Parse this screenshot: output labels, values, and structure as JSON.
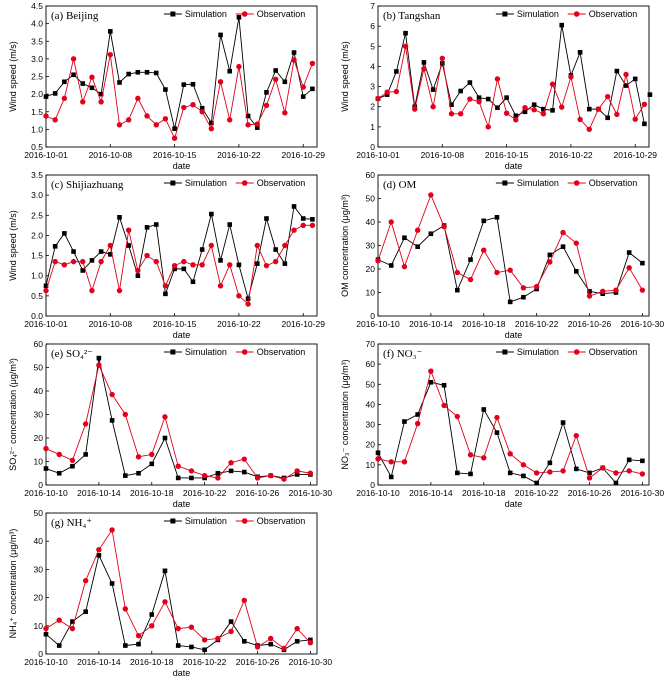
{
  "figure": {
    "series_names": [
      "Simulation",
      "Observation"
    ],
    "colors": {
      "simulation": "#000000",
      "observation": "#e3001b"
    }
  },
  "chart_data": [
    {
      "type": "line",
      "panel_label": "(a) Beijing",
      "xlabel": "date",
      "ylabel": "Wind speed (m/s)",
      "xlim": [
        0,
        29.5
      ],
      "ylim": [
        0.5,
        4.5
      ],
      "x_ticks": [
        0,
        7,
        14,
        21,
        28
      ],
      "x_tick_labels": [
        "2016-10-01",
        "2016-10-08",
        "2016-10-15",
        "2016-10-22",
        "2016-10-29"
      ],
      "y_ticks": [
        0.5,
        1.0,
        1.5,
        2.0,
        2.5,
        3.0,
        3.5,
        4.0,
        4.5
      ],
      "y_tick_labels": [
        "0.5",
        "1.0",
        "1.5",
        "2.0",
        "2.5",
        "3.0",
        "3.5",
        "4.0",
        "4.5"
      ],
      "series": [
        {
          "name": "Simulation",
          "x": [
            0,
            1,
            2,
            3,
            4,
            5,
            6,
            7,
            8,
            9,
            10,
            11,
            12,
            13,
            14,
            15,
            16,
            17,
            18,
            19,
            20,
            21,
            22,
            23,
            24,
            25,
            26,
            27,
            28,
            29
          ],
          "values": [
            1.93,
            2.02,
            2.35,
            2.55,
            2.3,
            2.18,
            2.0,
            3.78,
            2.33,
            2.57,
            2.62,
            2.62,
            2.6,
            2.13,
            1.02,
            2.27,
            2.28,
            1.6,
            1.18,
            3.68,
            2.65,
            4.18,
            1.38,
            1.05,
            2.05,
            2.67,
            2.35,
            3.18,
            1.93,
            2.15
          ]
        },
        {
          "name": "Observation",
          "x": [
            0,
            1,
            2,
            3,
            4,
            5,
            6,
            7,
            8,
            9,
            10,
            11,
            12,
            13,
            14,
            15,
            16,
            17,
            18,
            19,
            20,
            21,
            22,
            23,
            24,
            25,
            26,
            27,
            28,
            29
          ],
          "values": [
            1.38,
            1.27,
            1.88,
            3.0,
            1.78,
            2.48,
            1.78,
            3.12,
            1.13,
            1.27,
            1.88,
            1.38,
            1.13,
            1.3,
            0.75,
            1.62,
            1.7,
            1.5,
            1.02,
            2.35,
            1.27,
            2.78,
            1.13,
            1.15,
            1.68,
            2.42,
            1.47,
            2.97,
            2.2,
            2.87
          ]
        }
      ]
    },
    {
      "type": "line",
      "panel_label": "(b) Tangshan",
      "xlabel": "date",
      "ylabel": "Wind speed (m/s)",
      "xlim": [
        0,
        29.5
      ],
      "ylim": [
        0,
        7
      ],
      "x_ticks": [
        0,
        7,
        14,
        21,
        28
      ],
      "x_tick_labels": [
        "2016-10-01",
        "2016-10-08",
        "2016-10-15",
        "2016-10-22",
        "2016-10-29"
      ],
      "y_ticks": [
        0,
        1,
        2,
        3,
        4,
        5,
        6,
        7
      ],
      "y_tick_labels": [
        "0",
        "1",
        "2",
        "3",
        "4",
        "5",
        "6",
        "7"
      ],
      "series": [
        {
          "name": "Simulation",
          "x": [
            0,
            1,
            2,
            3,
            4,
            5,
            6,
            7,
            8,
            9,
            10,
            11,
            12,
            13,
            14,
            15,
            16,
            17,
            18,
            19,
            20,
            21,
            22,
            23,
            24,
            25,
            26,
            27,
            28,
            29
          ],
          "values": [
            2.4,
            2.6,
            3.75,
            5.65,
            2.0,
            4.2,
            2.85,
            4.15,
            2.1,
            2.78,
            3.2,
            2.45,
            2.38,
            1.95,
            2.45,
            1.55,
            1.75,
            2.1,
            1.88,
            1.82,
            6.05,
            3.55,
            4.7,
            1.88,
            1.88,
            1.45,
            3.77,
            3.05,
            3.38,
            1.15
          ]
        },
        {
          "name": "Observation",
          "x": [
            0,
            1,
            2,
            3,
            4,
            5,
            6,
            7,
            8,
            9,
            10,
            11,
            12,
            13,
            14,
            15,
            16,
            17,
            18,
            19,
            20,
            21,
            22,
            23,
            24,
            25,
            26,
            27,
            28,
            29
          ],
          "values": [
            2.4,
            2.72,
            2.75,
            5.0,
            1.88,
            3.88,
            2.0,
            4.4,
            1.65,
            1.65,
            2.38,
            2.25,
            1.0,
            3.38,
            1.68,
            1.35,
            1.95,
            1.85,
            1.65,
            3.12,
            1.98,
            3.48,
            1.37,
            0.88,
            1.88,
            2.5,
            1.62,
            3.6,
            1.38,
            2.12
          ]
        }
      ],
      "extra_points": {
        "x": [
          29.6
        ],
        "values": [
          2.6
        ]
      }
    },
    {
      "type": "line",
      "panel_label": "(c) Shijiazhuang",
      "xlabel": "date",
      "ylabel": "Wind speed (m/s)",
      "xlim": [
        0,
        29.5
      ],
      "ylim": [
        0,
        3.5
      ],
      "x_ticks": [
        0,
        7,
        14,
        21,
        28
      ],
      "x_tick_labels": [
        "2016-10-01",
        "2016-10-08",
        "2016-10-15",
        "2016-10-22",
        "2016-10-29"
      ],
      "y_ticks": [
        0,
        0.5,
        1.0,
        1.5,
        2.0,
        2.5,
        3.0,
        3.5
      ],
      "y_tick_labels": [
        "0.0",
        "0.5",
        "1.0",
        "1.5",
        "2.0",
        "2.5",
        "3.0",
        "3.5"
      ],
      "series": [
        {
          "name": "Simulation",
          "x": [
            0,
            1,
            2,
            3,
            4,
            5,
            6,
            7,
            8,
            9,
            10,
            11,
            12,
            13,
            14,
            15,
            16,
            17,
            18,
            19,
            20,
            21,
            22,
            23,
            24,
            25,
            26,
            27,
            28,
            29
          ],
          "values": [
            0.75,
            1.73,
            2.05,
            1.6,
            1.13,
            1.38,
            1.6,
            1.53,
            2.45,
            1.75,
            1.0,
            2.2,
            2.27,
            0.55,
            1.17,
            1.17,
            0.85,
            1.65,
            2.53,
            1.38,
            2.27,
            1.27,
            0.43,
            1.3,
            2.42,
            1.65,
            1.3,
            2.72,
            2.42,
            2.4
          ]
        },
        {
          "name": "Observation",
          "x": [
            0,
            1,
            2,
            3,
            4,
            5,
            6,
            7,
            8,
            9,
            10,
            11,
            12,
            13,
            14,
            15,
            16,
            17,
            18,
            19,
            20,
            21,
            22,
            23,
            24,
            25,
            26,
            27,
            28,
            29
          ],
          "values": [
            0.63,
            1.35,
            1.27,
            1.35,
            1.35,
            0.63,
            1.35,
            1.75,
            0.63,
            2.13,
            1.13,
            1.5,
            1.35,
            0.75,
            1.25,
            1.35,
            1.27,
            1.27,
            1.75,
            0.75,
            1.27,
            0.5,
            0.3,
            1.75,
            1.25,
            1.35,
            1.75,
            2.13,
            2.25,
            2.25
          ]
        }
      ]
    },
    {
      "type": "line",
      "panel_label": "(d) OM",
      "xlabel": "date",
      "ylabel": "OM concentration (μg/m³)",
      "xlim": [
        0,
        20.5
      ],
      "ylim": [
        0,
        60
      ],
      "x_ticks": [
        0,
        4,
        8,
        12,
        16,
        20
      ],
      "x_tick_labels": [
        "2016-10-10",
        "2016-10-14",
        "2016-10-18",
        "2016-10-22",
        "2016-10-26",
        "2016-10-30"
      ],
      "y_ticks": [
        0,
        10,
        20,
        30,
        40,
        50,
        60
      ],
      "y_tick_labels": [
        "0",
        "10",
        "20",
        "30",
        "40",
        "50",
        "60"
      ],
      "series": [
        {
          "name": "Simulation",
          "x": [
            0,
            1,
            2,
            3,
            4,
            5,
            6,
            7,
            8,
            9,
            10,
            11,
            12,
            13,
            14,
            15,
            16,
            17,
            18,
            19,
            20
          ],
          "values": [
            24,
            21.5,
            33.3,
            29.5,
            35,
            38.5,
            11,
            24,
            40.5,
            42,
            6,
            8,
            11.5,
            26,
            29.5,
            19,
            10.5,
            9.5,
            10,
            27,
            22.5
          ]
        },
        {
          "name": "Observation",
          "x": [
            0,
            1,
            2,
            3,
            4,
            5,
            6,
            7,
            8,
            9,
            10,
            11,
            12,
            13,
            14,
            15,
            16,
            17,
            18,
            19,
            20
          ],
          "values": [
            23.5,
            40,
            21,
            36.5,
            51.5,
            38,
            18.5,
            15.5,
            28,
            18.5,
            19.5,
            12,
            12.5,
            23,
            35.5,
            31,
            8.5,
            10.5,
            11,
            20.5,
            11
          ]
        }
      ]
    },
    {
      "type": "line",
      "panel_label": "(e) SO₄²⁻",
      "xlabel": "date",
      "ylabel": "SO₄²⁻ concentration (μg/m³)",
      "xlim": [
        0,
        20.5
      ],
      "ylim": [
        0,
        60
      ],
      "x_ticks": [
        0,
        4,
        8,
        12,
        16,
        20
      ],
      "x_tick_labels": [
        "2016-10-10",
        "2016-10-14",
        "2016-10-18",
        "2016-10-22",
        "2016-10-26",
        "2016-10-30"
      ],
      "y_ticks": [
        0,
        10,
        20,
        30,
        40,
        50,
        60
      ],
      "y_tick_labels": [
        "0",
        "10",
        "20",
        "30",
        "40",
        "50",
        "60"
      ],
      "series": [
        {
          "name": "Simulation",
          "x": [
            0,
            1,
            2,
            3,
            4,
            5,
            6,
            7,
            8,
            9,
            10,
            11,
            12,
            13,
            14,
            15,
            16,
            17,
            18,
            19,
            20
          ],
          "values": [
            7,
            5,
            8,
            13,
            54,
            27.5,
            4,
            5,
            9,
            20,
            3,
            3,
            3,
            5,
            6,
            5.5,
            3.5,
            4,
            3,
            4.5,
            4.5
          ]
        },
        {
          "name": "Observation",
          "x": [
            0,
            1,
            2,
            3,
            4,
            5,
            6,
            7,
            8,
            9,
            10,
            11,
            12,
            13,
            14,
            15,
            16,
            17,
            18,
            19,
            20
          ],
          "values": [
            15.5,
            13,
            10.5,
            26,
            51,
            38.5,
            30,
            12,
            13,
            29,
            8,
            6,
            4,
            3,
            9.5,
            11,
            3,
            4,
            2.5,
            6,
            5
          ]
        }
      ]
    },
    {
      "type": "line",
      "panel_label": "(f) NO₃⁻",
      "xlabel": "date",
      "ylabel": "NO₃⁻ concentration (μg/m³)",
      "xlim": [
        0,
        20.5
      ],
      "ylim": [
        0,
        70
      ],
      "x_ticks": [
        0,
        4,
        8,
        12,
        16,
        20
      ],
      "x_tick_labels": [
        "2016-10-10",
        "2016-10-14",
        "2016-10-18",
        "2016-10-22",
        "2016-10-26",
        "2016-10-30"
      ],
      "y_ticks": [
        0,
        10,
        20,
        30,
        40,
        50,
        60,
        70
      ],
      "y_tick_labels": [
        "0",
        "10",
        "20",
        "30",
        "40",
        "50",
        "60",
        "70"
      ],
      "series": [
        {
          "name": "Simulation",
          "x": [
            0,
            1,
            2,
            3,
            4,
            5,
            6,
            7,
            8,
            9,
            10,
            11,
            12,
            13,
            14,
            15,
            16,
            17,
            18,
            19,
            20
          ],
          "values": [
            16,
            4,
            31.5,
            35,
            51,
            49.5,
            6,
            5.5,
            37.5,
            26,
            6,
            4.5,
            1,
            11,
            31,
            8,
            6,
            8.5,
            1,
            12.5,
            12
          ]
        },
        {
          "name": "Observation",
          "x": [
            0,
            1,
            2,
            3,
            4,
            5,
            6,
            7,
            8,
            9,
            10,
            11,
            12,
            13,
            14,
            15,
            16,
            17,
            18,
            19,
            20
          ],
          "values": [
            13,
            11.5,
            11.5,
            30.5,
            56.5,
            39.5,
            34,
            15,
            13.5,
            33.5,
            15.5,
            10,
            6,
            6.5,
            7,
            24.5,
            3.5,
            8.5,
            6,
            7,
            5.5
          ]
        }
      ]
    },
    {
      "type": "line",
      "panel_label": "(g) NH₄⁺",
      "xlabel": "date",
      "ylabel": "NH₄⁺ concentration (μg/m³)",
      "xlim": [
        0,
        20.5
      ],
      "ylim": [
        0,
        50
      ],
      "x_ticks": [
        0,
        4,
        8,
        12,
        16,
        20
      ],
      "x_tick_labels": [
        "2016-10-10",
        "2016-10-14",
        "2016-10-18",
        "2016-10-22",
        "2016-10-26",
        "2016-10-30"
      ],
      "y_ticks": [
        0,
        10,
        20,
        30,
        40,
        50
      ],
      "y_tick_labels": [
        "0",
        "10",
        "20",
        "30",
        "40",
        "50"
      ],
      "series": [
        {
          "name": "Simulation",
          "x": [
            0,
            1,
            2,
            3,
            4,
            5,
            6,
            7,
            8,
            9,
            10,
            11,
            12,
            13,
            14,
            15,
            16,
            17,
            18,
            19,
            20
          ],
          "values": [
            7,
            3,
            11.5,
            15,
            35,
            25,
            3,
            3.5,
            14,
            29.5,
            3,
            2.5,
            1.5,
            5,
            11.5,
            4.5,
            3,
            3.5,
            1.5,
            4.5,
            5
          ]
        },
        {
          "name": "Observation",
          "x": [
            0,
            1,
            2,
            3,
            4,
            5,
            6,
            7,
            8,
            9,
            10,
            11,
            12,
            13,
            14,
            15,
            16,
            17,
            18,
            19,
            20
          ],
          "values": [
            9,
            12,
            9,
            26,
            37,
            44,
            16,
            6.5,
            10,
            18.5,
            9,
            9.5,
            5,
            5.5,
            8,
            19,
            2.5,
            5.5,
            2,
            9,
            4
          ]
        }
      ]
    }
  ]
}
